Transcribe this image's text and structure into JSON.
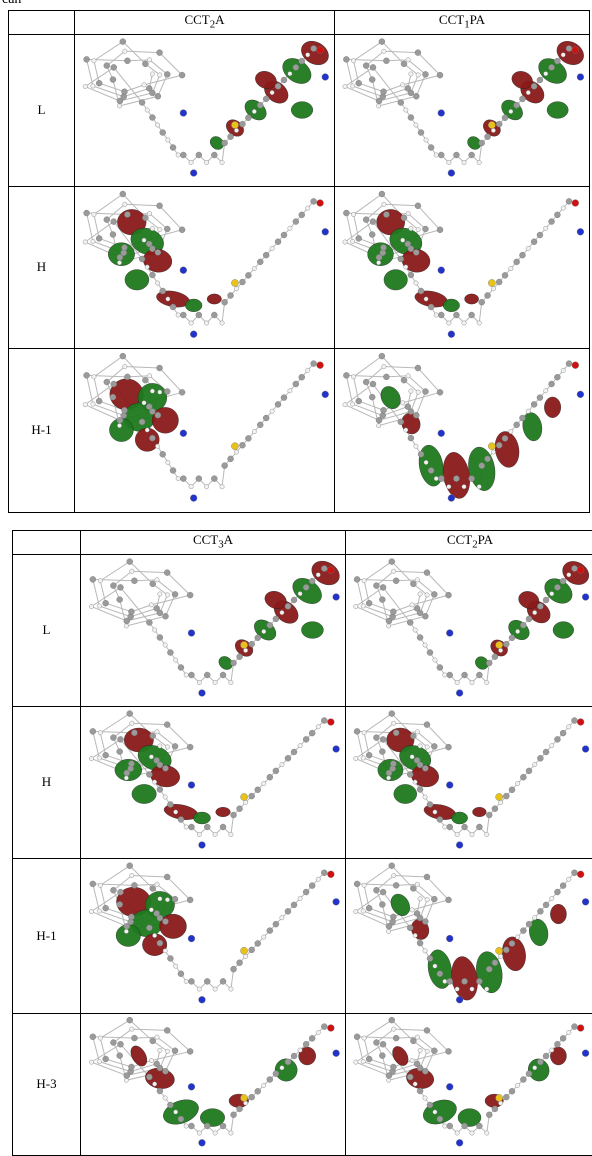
{
  "top_fragment": "can",
  "table1": {
    "columns": [
      {
        "base": "CCT",
        "sub": "2",
        "rest": "A"
      },
      {
        "base": "CCT",
        "sub": "1",
        "rest": "PA"
      }
    ],
    "rows": [
      "L",
      "H",
      "H-1"
    ]
  },
  "table2": {
    "columns": [
      {
        "base": "CCT",
        "sub": "3",
        "rest": "A"
      },
      {
        "base": "CCT",
        "sub": "2",
        "rest": "PA"
      }
    ],
    "rows": [
      "L",
      "H",
      "H-1",
      "H-3"
    ]
  },
  "colors": {
    "lobe_red": "#8b1a1a",
    "lobe_green": "#1e7a1e",
    "atom_carbon": "#9a9a9a",
    "atom_hydrogen": "#f2f2f2",
    "atom_nitrogen": "#2233cc",
    "atom_sulfur": "#e8c21a",
    "atom_oxygen": "#d01010"
  }
}
